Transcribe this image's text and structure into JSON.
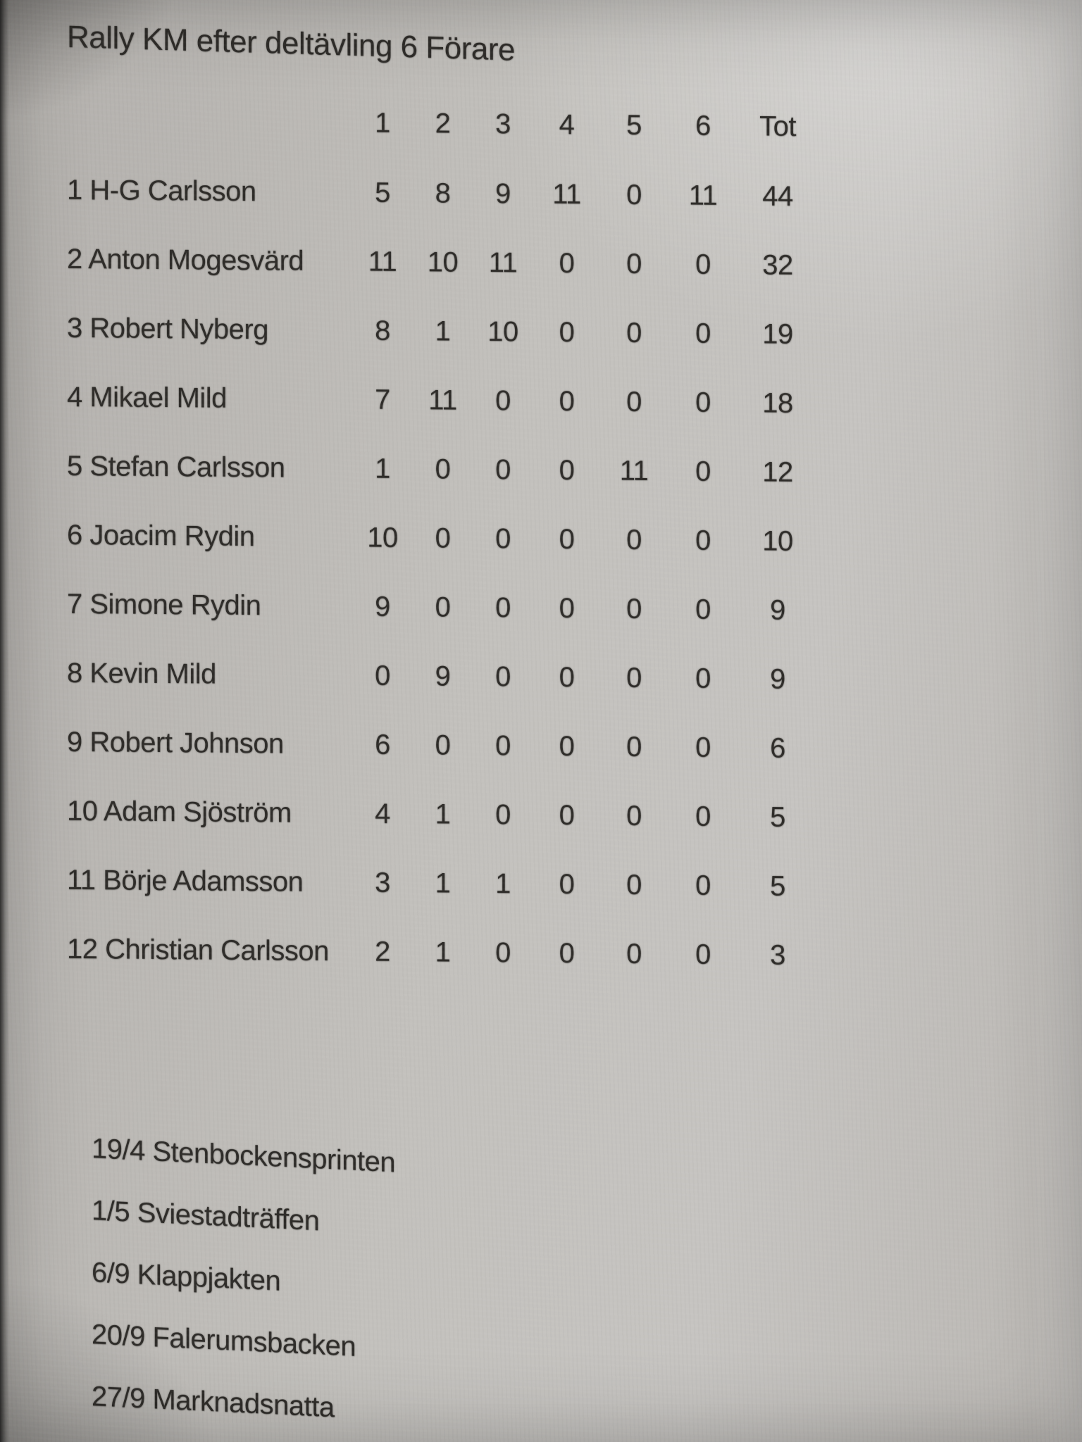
{
  "title": "Rally KM efter deltävling 6 Förare",
  "table": {
    "columns": [
      "1",
      "2",
      "3",
      "4",
      "5",
      "6",
      "Tot"
    ],
    "rows": [
      {
        "rank": "1",
        "name": "H-G Carlsson",
        "scores": [
          "5",
          "8",
          "9",
          "11",
          "0",
          "11"
        ],
        "total": "44"
      },
      {
        "rank": "2",
        "name": "Anton Mogesvärd",
        "scores": [
          "11",
          "10",
          "11",
          "0",
          "0",
          "0"
        ],
        "total": "32"
      },
      {
        "rank": "3",
        "name": "Robert Nyberg",
        "scores": [
          "8",
          "1",
          "10",
          "0",
          "0",
          "0"
        ],
        "total": "19"
      },
      {
        "rank": "4",
        "name": "Mikael Mild",
        "scores": [
          "7",
          "11",
          "0",
          "0",
          "0",
          "0"
        ],
        "total": "18"
      },
      {
        "rank": "5",
        "name": "Stefan Carlsson",
        "scores": [
          "1",
          "0",
          "0",
          "0",
          "11",
          "0"
        ],
        "total": "12"
      },
      {
        "rank": "6",
        "name": "Joacim Rydin",
        "scores": [
          "10",
          "0",
          "0",
          "0",
          "0",
          "0"
        ],
        "total": "10"
      },
      {
        "rank": "7",
        "name": "Simone Rydin",
        "scores": [
          "9",
          "0",
          "0",
          "0",
          "0",
          "0"
        ],
        "total": "9"
      },
      {
        "rank": "8",
        "name": "Kevin Mild",
        "scores": [
          "0",
          "9",
          "0",
          "0",
          "0",
          "0"
        ],
        "total": "9"
      },
      {
        "rank": "9",
        "name": "Robert Johnson",
        "scores": [
          "6",
          "0",
          "0",
          "0",
          "0",
          "0"
        ],
        "total": "6"
      },
      {
        "rank": "10",
        "name": "Adam Sjöström",
        "scores": [
          "4",
          "1",
          "0",
          "0",
          "0",
          "0"
        ],
        "total": "5"
      },
      {
        "rank": "11",
        "name": "Börje Adamsson",
        "scores": [
          "3",
          "1",
          "1",
          "0",
          "0",
          "0"
        ],
        "total": "5"
      },
      {
        "rank": "12",
        "name": "Christian Carlsson",
        "scores": [
          "2",
          "1",
          "0",
          "0",
          "0",
          "0"
        ],
        "total": "3"
      }
    ]
  },
  "events": [
    "19/4 Stenbockensprinten",
    "1/5 Sviestadträffen",
    "6/9 Klappjakten",
    "20/9 Falerumsbacken",
    "27/9 Marknadsnatta"
  ],
  "colors": {
    "paper": "#c3c1bd",
    "ink": "#2e2c29"
  }
}
